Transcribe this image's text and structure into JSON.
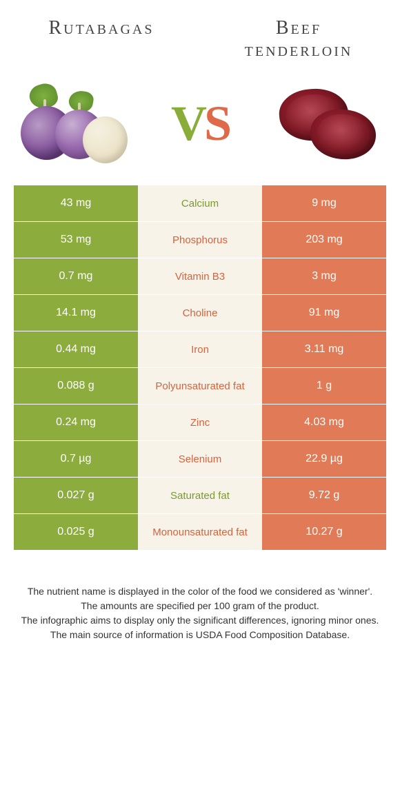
{
  "colors": {
    "green": "#8dac3e",
    "orange": "#e17a56",
    "mid_bg": "#f7f3e8",
    "mid_green_text": "#7a9a2e",
    "mid_orange_text": "#d4633e"
  },
  "titles": {
    "left": "Rutabagas",
    "right_line1": "Beef",
    "right_line2": "tenderloin"
  },
  "vs": {
    "v": "V",
    "s": "S"
  },
  "rows": [
    {
      "left": "43 mg",
      "label": "Calcium",
      "right": "9 mg",
      "winner": "left"
    },
    {
      "left": "53 mg",
      "label": "Phosphorus",
      "right": "203 mg",
      "winner": "right"
    },
    {
      "left": "0.7 mg",
      "label": "Vitamin B3",
      "right": "3 mg",
      "winner": "right"
    },
    {
      "left": "14.1 mg",
      "label": "Choline",
      "right": "91 mg",
      "winner": "right"
    },
    {
      "left": "0.44 mg",
      "label": "Iron",
      "right": "3.11 mg",
      "winner": "right"
    },
    {
      "left": "0.088 g",
      "label": "Polyunsaturated fat",
      "right": "1 g",
      "winner": "right"
    },
    {
      "left": "0.24 mg",
      "label": "Zinc",
      "right": "4.03 mg",
      "winner": "right"
    },
    {
      "left": "0.7 µg",
      "label": "Selenium",
      "right": "22.9 µg",
      "winner": "right"
    },
    {
      "left": "0.027 g",
      "label": "Saturated fat",
      "right": "9.72 g",
      "winner": "left"
    },
    {
      "left": "0.025 g",
      "label": "Monounsaturated fat",
      "right": "10.27 g",
      "winner": "right"
    }
  ],
  "footer": {
    "l1": "The nutrient name is displayed in the color of the food we considered as 'winner'.",
    "l2": "The amounts are specified per 100 gram of the product.",
    "l3": "The infographic aims to display only the significant differences, ignoring minor ones.",
    "l4": "The main source of information is USDA Food Composition Database."
  }
}
